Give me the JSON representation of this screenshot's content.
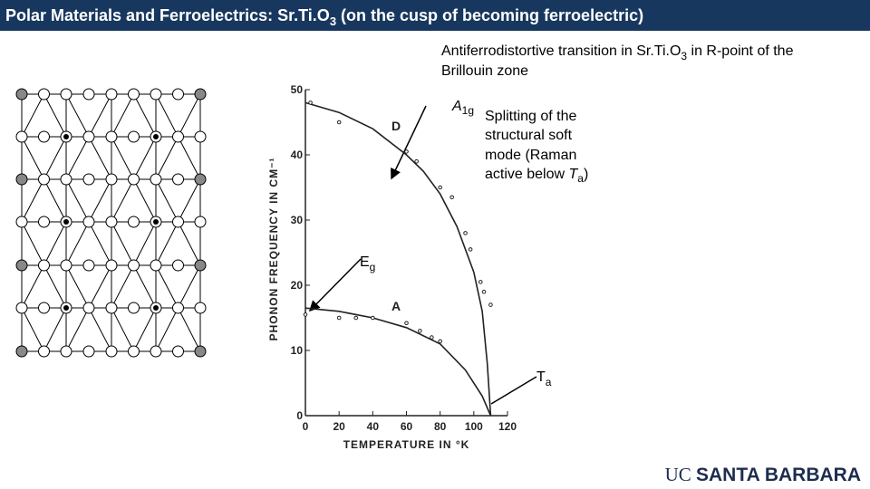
{
  "header": {
    "title": [
      "Polar Materials and Ferroelectrics: Sr.Ti.O",
      "3",
      " (on the cusp of becoming ferroelectric)"
    ]
  },
  "annotations": {
    "transition": [
      "Antiferrodistortive transition in Sr.Ti.O",
      "3",
      " in R-point of the",
      "Brillouin zone"
    ],
    "a1g": [
      "A",
      "1g"
    ],
    "splitting": [
      "Splitting of the",
      "structural soft",
      "mode (Raman",
      "active below ",
      "T",
      "a",
      ")"
    ],
    "eg": [
      "E",
      "g"
    ],
    "ta": [
      "T",
      "a"
    ]
  },
  "logo": [
    "UC ",
    "SANTA BARBARA"
  ],
  "chart_data": {
    "type": "line",
    "xlabel": "TEMPERATURE IN °K",
    "ylabel": "PHONON FREQUENCY IN CM⁻¹",
    "xlim": [
      0,
      120
    ],
    "ylim": [
      0,
      50
    ],
    "xticks": [
      0,
      20,
      40,
      60,
      80,
      100,
      120
    ],
    "yticks": [
      0,
      10,
      20,
      30,
      40,
      50
    ],
    "series": [
      {
        "name": "D",
        "color": "#222",
        "x": [
          0,
          20,
          40,
          60,
          70,
          80,
          90,
          100,
          105,
          108,
          110
        ],
        "values": [
          48,
          46.5,
          44,
          40,
          37.5,
          34,
          29,
          22,
          16,
          8,
          0
        ]
      },
      {
        "name": "A",
        "color": "#222",
        "x": [
          0,
          20,
          40,
          60,
          80,
          95,
          105,
          110
        ],
        "values": [
          16.5,
          16,
          15,
          13.5,
          11,
          7,
          3,
          0
        ]
      }
    ],
    "points": [
      {
        "x": [
          3,
          20,
          60,
          66,
          80,
          87,
          95,
          98,
          104,
          106,
          110
        ],
        "values": [
          48,
          45,
          40.5,
          39,
          35,
          33.5,
          28,
          25.5,
          20.5,
          19,
          17
        ]
      },
      {
        "x": [
          0,
          20,
          30,
          40,
          60,
          68,
          75,
          80
        ],
        "values": [
          15.5,
          15,
          15,
          15,
          14.2,
          13,
          12,
          11.4
        ]
      }
    ]
  }
}
